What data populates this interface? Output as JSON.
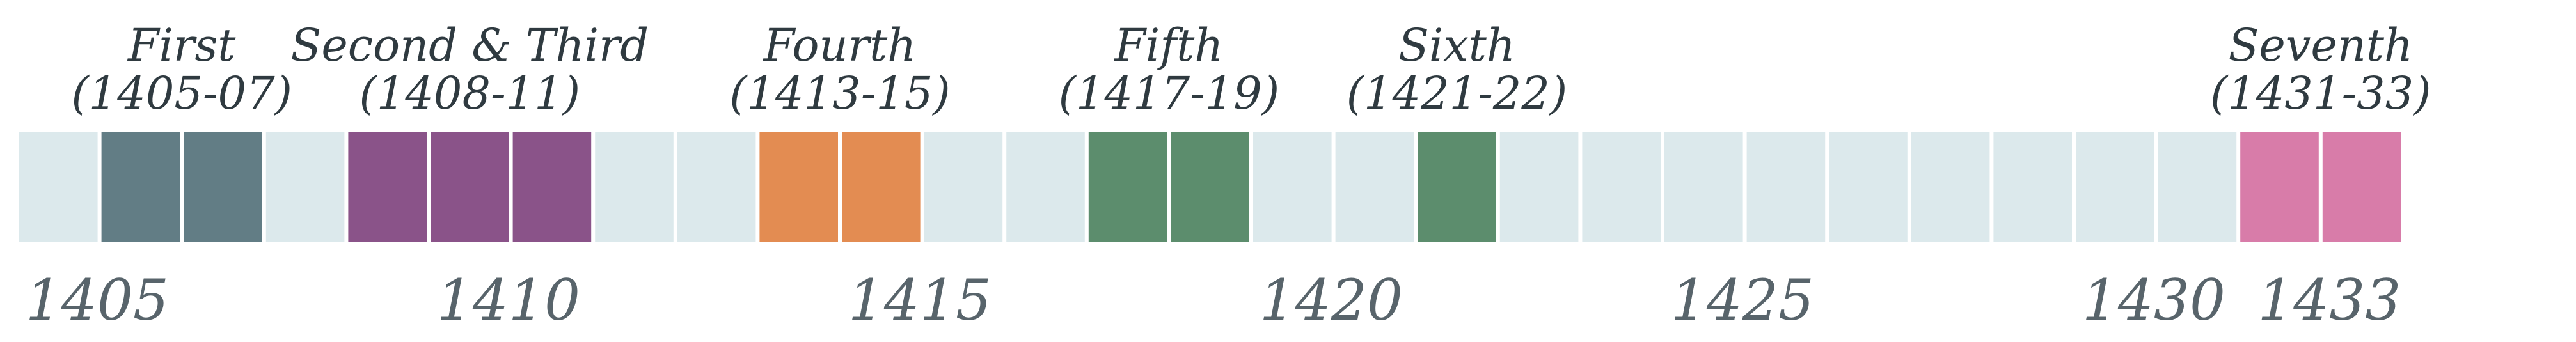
{
  "chart_data": {
    "type": "timeline",
    "start_year": 1405,
    "end_year": 1433,
    "empty_color": "#dce9ec",
    "voyages": [
      {
        "name": "First",
        "range": "(1405-07)",
        "start": 1406,
        "end": 1408,
        "color": "#627d85"
      },
      {
        "name": "Second & Third",
        "range": "(1408-11)",
        "start": 1409,
        "end": 1412,
        "color": "#8a5389"
      },
      {
        "name": "Fourth",
        "range": "(1413-15)",
        "start": 1414,
        "end": 1416,
        "color": "#e38c52"
      },
      {
        "name": "Fifth",
        "range": "(1417-19)",
        "start": 1418,
        "end": 1420,
        "color": "#5c8d6d"
      },
      {
        "name": "Sixth",
        "range": "(1421-22)",
        "start": 1422,
        "end": 1423,
        "color": "#5c8d6d"
      },
      {
        "name": "Seventh",
        "range": "(1431-33)",
        "start": 1432,
        "end": 1434,
        "color": "#d87ca9"
      }
    ],
    "tick_labels": [
      "1405",
      "1410",
      "1415",
      "1420",
      "1425",
      "1430",
      "1433"
    ]
  }
}
